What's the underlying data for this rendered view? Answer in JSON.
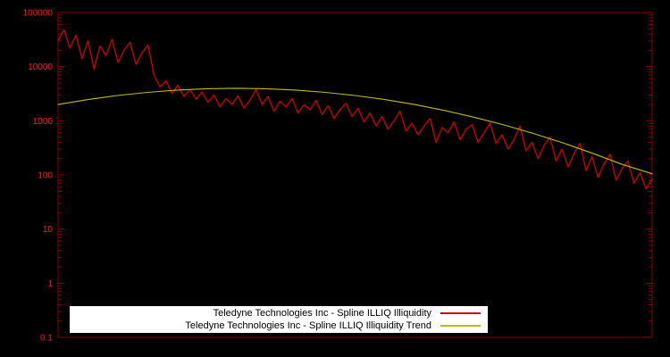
{
  "colors": {
    "background": "#000000",
    "frame": "#8b0000",
    "tick_label": "#ff1a1a",
    "series_red": "#d40000",
    "series_yellow": "#bdbd00",
    "legend_background": "#ffffff",
    "legend_text": "#000000"
  },
  "chart_data": {
    "type": "line",
    "title": "",
    "xlabel": "",
    "ylabel": "",
    "yscale": "log",
    "ylim": [
      0.1,
      100000
    ],
    "grid": false,
    "legend_position": "bottom-center",
    "yticks": [
      {
        "value": 100000,
        "label": "100000"
      },
      {
        "value": 10000,
        "label": "10000"
      },
      {
        "value": 1000,
        "label": "1000"
      },
      {
        "value": 100,
        "label": "100"
      },
      {
        "value": 10,
        "label": "10"
      },
      {
        "value": 1,
        "label": "1"
      },
      {
        "value": 0.1,
        "label": "0.1"
      }
    ],
    "series": [
      {
        "name": "Teledyne Technologies Inc - Spline ILLIQ Illiquidity",
        "color": "#d40000",
        "values": [
          30000,
          48000,
          22000,
          38000,
          14000,
          30000,
          9000,
          24000,
          16000,
          32000,
          12000,
          20000,
          28000,
          11000,
          18000,
          25000,
          7000,
          4200,
          5500,
          3200,
          4500,
          2800,
          3800,
          2500,
          3400,
          2200,
          3000,
          1800,
          2600,
          2000,
          2900,
          1700,
          2400,
          3800,
          2000,
          2800,
          1500,
          2300,
          1800,
          2600,
          1400,
          2000,
          1600,
          2400,
          1300,
          1900,
          1100,
          1600,
          2100,
          1200,
          1700,
          950,
          1400,
          800,
          1200,
          700,
          1000,
          1500,
          650,
          900,
          550,
          800,
          1100,
          400,
          750,
          600,
          950,
          450,
          700,
          850,
          400,
          600,
          900,
          380,
          550,
          300,
          450,
          800,
          280,
          400,
          200,
          350,
          500,
          180,
          300,
          140,
          250,
          380,
          120,
          220,
          90,
          160,
          240,
          80,
          130,
          180,
          70,
          110,
          55,
          85
        ]
      },
      {
        "name": "Teledyne Technologies Inc - Spline ILLIQ Illiquidity Trend",
        "color": "#bdbd00",
        "x": [
          0,
          0.05,
          0.1,
          0.15,
          0.2,
          0.25,
          0.3,
          0.35,
          0.4,
          0.45,
          0.5,
          0.55,
          0.6,
          0.65,
          0.7,
          0.75,
          0.8,
          0.85,
          0.9,
          0.95,
          1
        ],
        "values": [
          2000,
          2465,
          2930,
          3350,
          3690,
          3905,
          3980,
          3905,
          3690,
          3350,
          2930,
          2465,
          2000,
          1555,
          1167,
          841,
          585,
          391,
          251,
          156,
          105
        ]
      }
    ]
  }
}
